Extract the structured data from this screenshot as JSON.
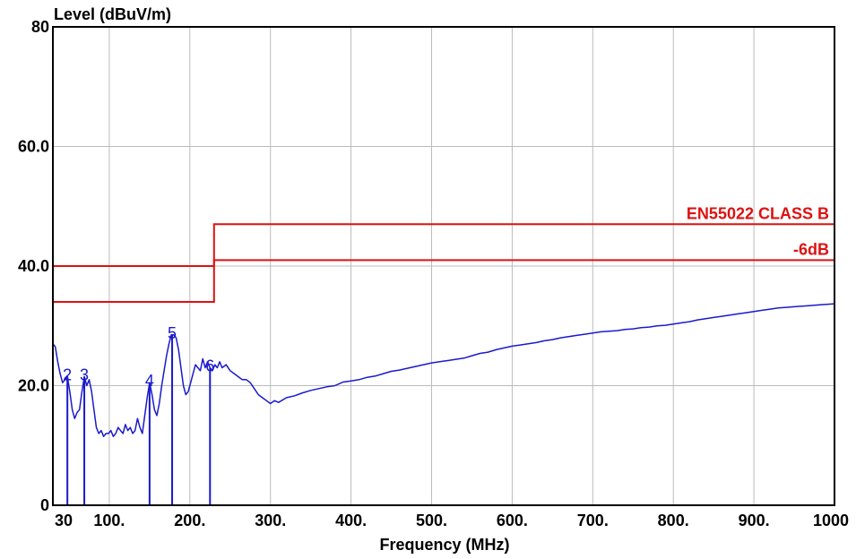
{
  "chart_data": {
    "type": "line",
    "ylabel": "Level (dBuV/m)",
    "xlabel": "Frequency (MHz)",
    "xlim": [
      30,
      1000
    ],
    "ylim": [
      0,
      80
    ],
    "x_ticks": [
      {
        "value": 30,
        "label": "30"
      },
      {
        "value": 100,
        "label": "100."
      },
      {
        "value": 200,
        "label": "200."
      },
      {
        "value": 300,
        "label": "300."
      },
      {
        "value": 400,
        "label": "400."
      },
      {
        "value": 500,
        "label": "500."
      },
      {
        "value": 600,
        "label": "600."
      },
      {
        "value": 700,
        "label": "700."
      },
      {
        "value": 800,
        "label": "800."
      },
      {
        "value": 900,
        "label": "900."
      },
      {
        "value": 1000,
        "label": "1000"
      }
    ],
    "y_ticks": [
      {
        "value": 0,
        "label": "0"
      },
      {
        "value": 20,
        "label": "20.0"
      },
      {
        "value": 40,
        "label": "40.0"
      },
      {
        "value": 60,
        "label": "60.0"
      },
      {
        "value": 80,
        "label": "80"
      }
    ],
    "x_grid": [
      100,
      200,
      300,
      400,
      500,
      600,
      700,
      800,
      900
    ],
    "y_grid": [
      20,
      40,
      60
    ],
    "grid": true,
    "colors": {
      "limit": "#dd1111",
      "trace": "#1a1acc",
      "grid": "#bbbbbb",
      "frame": "#000000"
    },
    "limit_lines": [
      {
        "label": "EN55022 CLASS B",
        "segments": [
          [
            30,
            230,
            40
          ],
          [
            230,
            1000,
            47
          ]
        ]
      },
      {
        "label": "-6dB",
        "segments": [
          [
            30,
            230,
            34
          ],
          [
            230,
            1000,
            41
          ]
        ]
      }
    ],
    "series": [
      {
        "points": [
          [
            30,
            27
          ],
          [
            33,
            26.5
          ],
          [
            36,
            24
          ],
          [
            39,
            22
          ],
          [
            42,
            20.5
          ],
          [
            45,
            21
          ],
          [
            48,
            21.5
          ],
          [
            51,
            19
          ],
          [
            54,
            16
          ],
          [
            57,
            14.5
          ],
          [
            60,
            15.5
          ],
          [
            63,
            16
          ],
          [
            66,
            19
          ],
          [
            69,
            21.5
          ],
          [
            72,
            20
          ],
          [
            75,
            21
          ],
          [
            78,
            19
          ],
          [
            81,
            16
          ],
          [
            84,
            13
          ],
          [
            87,
            12
          ],
          [
            90,
            12.5
          ],
          [
            93,
            11.5
          ],
          [
            96,
            12
          ],
          [
            99,
            12
          ],
          [
            102,
            12.5
          ],
          [
            105,
            11.5
          ],
          [
            108,
            12
          ],
          [
            111,
            13
          ],
          [
            114,
            12.5
          ],
          [
            117,
            12
          ],
          [
            120,
            13.5
          ],
          [
            123,
            12.5
          ],
          [
            126,
            13
          ],
          [
            129,
            12
          ],
          [
            132,
            12.5
          ],
          [
            135,
            14.5
          ],
          [
            138,
            13
          ],
          [
            141,
            12
          ],
          [
            144,
            15
          ],
          [
            147,
            18
          ],
          [
            150,
            20.5
          ],
          [
            153,
            18.5
          ],
          [
            156,
            16
          ],
          [
            159,
            15
          ],
          [
            162,
            17
          ],
          [
            165,
            20
          ],
          [
            168,
            22.5
          ],
          [
            171,
            25
          ],
          [
            174,
            27
          ],
          [
            177,
            28.5
          ],
          [
            180,
            28.5
          ],
          [
            183,
            28
          ],
          [
            186,
            26
          ],
          [
            189,
            23
          ],
          [
            192,
            20
          ],
          [
            195,
            18.5
          ],
          [
            198,
            19
          ],
          [
            201,
            20.5
          ],
          [
            204,
            22
          ],
          [
            207,
            23.5
          ],
          [
            210,
            23
          ],
          [
            213,
            22.5
          ],
          [
            216,
            24.5
          ],
          [
            219,
            23
          ],
          [
            222,
            24
          ],
          [
            225,
            23
          ],
          [
            228,
            22.5
          ],
          [
            231,
            23.5
          ],
          [
            234,
            23
          ],
          [
            237,
            24
          ],
          [
            240,
            23
          ],
          [
            245,
            23.5
          ],
          [
            250,
            22.5
          ],
          [
            255,
            22
          ],
          [
            260,
            21.5
          ],
          [
            265,
            21
          ],
          [
            270,
            21
          ],
          [
            275,
            20.5
          ],
          [
            280,
            19.5
          ],
          [
            285,
            18.5
          ],
          [
            290,
            18
          ],
          [
            295,
            17.5
          ],
          [
            300,
            17
          ],
          [
            305,
            17.5
          ],
          [
            310,
            17.2
          ],
          [
            320,
            18
          ],
          [
            330,
            18.3
          ],
          [
            340,
            18.8
          ],
          [
            350,
            19.2
          ],
          [
            360,
            19.5
          ],
          [
            370,
            19.8
          ],
          [
            380,
            20
          ],
          [
            390,
            20.6
          ],
          [
            400,
            20.8
          ],
          [
            410,
            21
          ],
          [
            420,
            21.4
          ],
          [
            430,
            21.6
          ],
          [
            440,
            22
          ],
          [
            450,
            22.4
          ],
          [
            460,
            22.6
          ],
          [
            470,
            22.9
          ],
          [
            480,
            23.2
          ],
          [
            490,
            23.5
          ],
          [
            500,
            23.8
          ],
          [
            510,
            24
          ],
          [
            520,
            24.2
          ],
          [
            530,
            24.4
          ],
          [
            540,
            24.6
          ],
          [
            550,
            25
          ],
          [
            560,
            25.4
          ],
          [
            570,
            25.6
          ],
          [
            580,
            26
          ],
          [
            590,
            26.3
          ],
          [
            600,
            26.6
          ],
          [
            610,
            26.8
          ],
          [
            620,
            27
          ],
          [
            630,
            27.2
          ],
          [
            640,
            27.5
          ],
          [
            650,
            27.7
          ],
          [
            660,
            28
          ],
          [
            670,
            28.2
          ],
          [
            680,
            28.4
          ],
          [
            690,
            28.6
          ],
          [
            700,
            28.8
          ],
          [
            710,
            29
          ],
          [
            720,
            29.1
          ],
          [
            730,
            29.2
          ],
          [
            740,
            29.4
          ],
          [
            750,
            29.5
          ],
          [
            760,
            29.7
          ],
          [
            770,
            29.8
          ],
          [
            780,
            30
          ],
          [
            790,
            30.1
          ],
          [
            800,
            30.3
          ],
          [
            810,
            30.5
          ],
          [
            820,
            30.7
          ],
          [
            830,
            31
          ],
          [
            840,
            31.2
          ],
          [
            850,
            31.4
          ],
          [
            860,
            31.6
          ],
          [
            870,
            31.8
          ],
          [
            880,
            32
          ],
          [
            890,
            32.2
          ],
          [
            900,
            32.4
          ],
          [
            910,
            32.6
          ],
          [
            920,
            32.8
          ],
          [
            930,
            33
          ],
          [
            940,
            33.1
          ],
          [
            950,
            33.2
          ],
          [
            960,
            33.3
          ],
          [
            970,
            33.4
          ],
          [
            980,
            33.5
          ],
          [
            990,
            33.6
          ],
          [
            1000,
            33.7
          ]
        ]
      }
    ],
    "markers": [
      {
        "label": "2",
        "x": 48,
        "y": 21.5
      },
      {
        "label": "3",
        "x": 69,
        "y": 21.5
      },
      {
        "label": "4",
        "x": 150,
        "y": 20.5
      },
      {
        "label": "5",
        "x": 178,
        "y": 28.5
      },
      {
        "label": "6",
        "x": 225,
        "y": 23
      }
    ]
  }
}
